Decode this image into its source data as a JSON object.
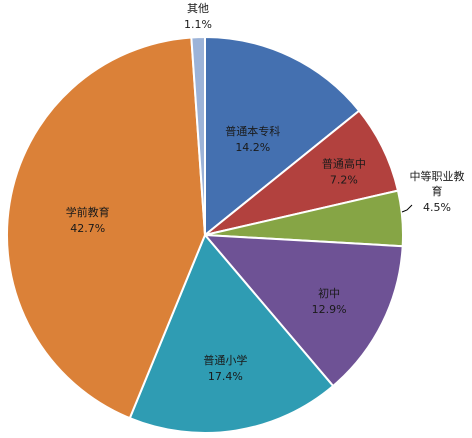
{
  "chart_data": {
    "type": "pie",
    "title": "",
    "start_angle_deg": 0,
    "direction": "clockwise",
    "slices": [
      {
        "name": "普通本专科",
        "value": 14.2,
        "label": "14.2%",
        "color": "#4470b0"
      },
      {
        "name": "普通高中",
        "value": 7.2,
        "label": "7.2%",
        "color": "#b2413e"
      },
      {
        "name": "中等职业教育",
        "name_lines": [
          "中等职业教",
          "育"
        ],
        "value": 4.5,
        "label": "4.5%",
        "color": "#86a545"
      },
      {
        "name": "初中",
        "value": 12.9,
        "label": "12.9%",
        "color": "#6e5295"
      },
      {
        "name": "普通小学",
        "value": 17.4,
        "label": "17.4%",
        "color": "#2f9cb3"
      },
      {
        "name": "学前教育",
        "value": 42.7,
        "label": "42.7%",
        "color": "#db8138"
      },
      {
        "name": "其他",
        "value": 1.1,
        "label": "1.1%",
        "color": "#9cb3d8"
      }
    ]
  }
}
